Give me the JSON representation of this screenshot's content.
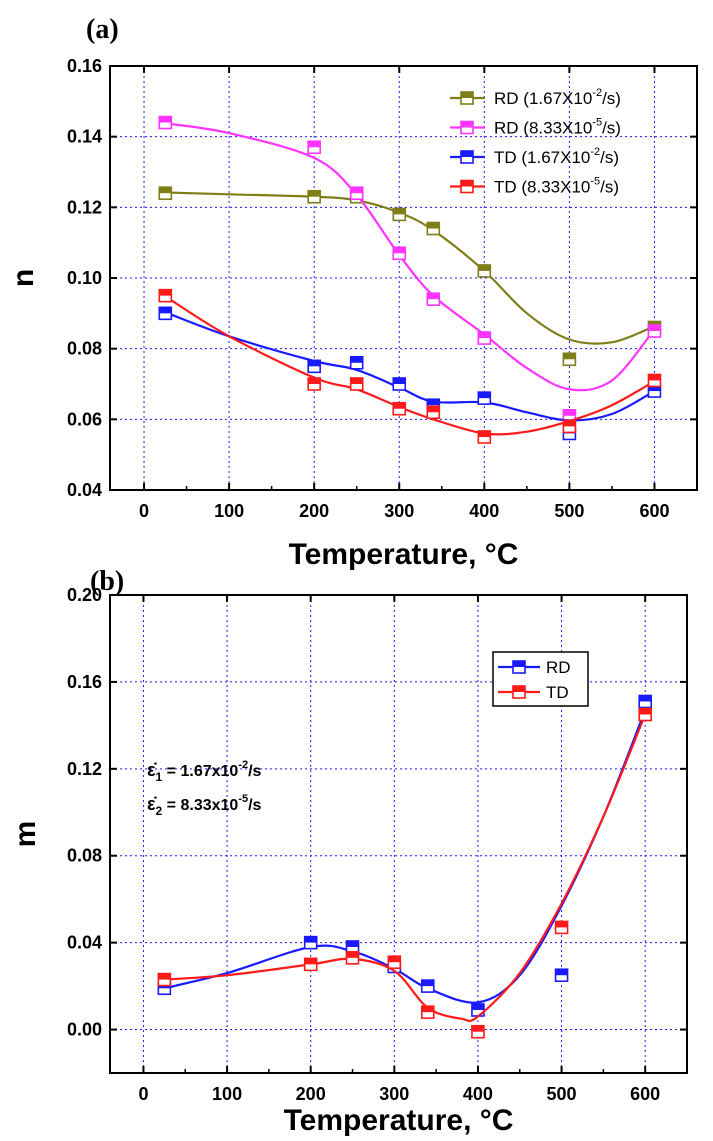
{
  "chart_data": [
    {
      "panel": "(a)",
      "type": "line",
      "xlabel": "Temperature, °C",
      "ylabel": "n",
      "xlim": [
        -40,
        650
      ],
      "ylim": [
        0.04,
        0.16
      ],
      "xticks": [
        0,
        100,
        200,
        300,
        400,
        500,
        600
      ],
      "yticks": [
        0.04,
        0.06,
        0.08,
        0.1,
        0.12,
        0.14,
        0.16
      ],
      "yticklabels": [
        "0.04",
        "0.06",
        "0.08",
        "0.10",
        "0.12",
        "0.14",
        "0.16"
      ],
      "grid": true,
      "legend_position": "top-right",
      "x": [
        25,
        200,
        250,
        300,
        340,
        400,
        500,
        600
      ],
      "series": [
        {
          "name": "RD (1.67X10-2/s)",
          "legend_base": "RD (1.67X10",
          "legend_exp": "-2",
          "legend_tail": "/s)",
          "color": "#7f7f1a",
          "values": [
            0.124,
            0.123,
            0.123,
            0.118,
            0.114,
            0.102,
            0.077,
            0.086
          ],
          "curve": [
            [
              25,
              0.1242
            ],
            [
              100,
              0.1237
            ],
            [
              200,
              0.123
            ],
            [
              250,
              0.122
            ],
            [
              300,
              0.1185
            ],
            [
              340,
              0.1135
            ],
            [
              400,
              0.102
            ],
            [
              450,
              0.09
            ],
            [
              500,
              0.0826
            ],
            [
              550,
              0.0818
            ],
            [
              600,
              0.0864
            ]
          ]
        },
        {
          "name": "RD (8.33X10-5/s)",
          "legend_base": "RD (8.33X10",
          "legend_exp": "-5",
          "legend_tail": "/s)",
          "color": "#ff33ff",
          "values": [
            0.144,
            0.137,
            0.124,
            0.107,
            0.094,
            0.083,
            0.061,
            0.085
          ],
          "curve": [
            [
              25,
              0.1438
            ],
            [
              100,
              0.141
            ],
            [
              200,
              0.134
            ],
            [
              250,
              0.1235
            ],
            [
              300,
              0.1065
            ],
            [
              340,
              0.095
            ],
            [
              400,
              0.084
            ],
            [
              450,
              0.0745
            ],
            [
              500,
              0.0685
            ],
            [
              550,
              0.071
            ],
            [
              600,
              0.0855
            ]
          ]
        },
        {
          "name": "TD (1.67X10-2/s)",
          "legend_base": "TD (1.67X10",
          "legend_exp": "-2",
          "legend_tail": "/s)",
          "color": "#1a1aff",
          "values": [
            0.09,
            0.075,
            0.076,
            0.07,
            0.064,
            0.066,
            0.056,
            0.068
          ],
          "curve": [
            [
              25,
              0.0903
            ],
            [
              100,
              0.0835
            ],
            [
              200,
              0.0765
            ],
            [
              250,
              0.074
            ],
            [
              300,
              0.069
            ],
            [
              340,
              0.065
            ],
            [
              400,
              0.0648
            ],
            [
              450,
              0.062
            ],
            [
              500,
              0.0597
            ],
            [
              550,
              0.0615
            ],
            [
              600,
              0.068
            ]
          ]
        },
        {
          "name": "TD (8.33X10-5/s)",
          "legend_base": "TD (8.33X10",
          "legend_exp": "-5",
          "legend_tail": "/s)",
          "color": "#ff1a1a",
          "values": [
            0.095,
            0.07,
            0.07,
            0.063,
            0.062,
            0.055,
            0.058,
            0.071
          ],
          "curve": [
            [
              25,
              0.0948
            ],
            [
              100,
              0.0835
            ],
            [
              200,
              0.0718
            ],
            [
              250,
              0.0685
            ],
            [
              300,
              0.0635
            ],
            [
              340,
              0.06
            ],
            [
              400,
              0.056
            ],
            [
              450,
              0.0565
            ],
            [
              500,
              0.0595
            ],
            [
              550,
              0.064
            ],
            [
              600,
              0.0708
            ]
          ]
        }
      ]
    },
    {
      "panel": "(b)",
      "type": "line",
      "xlabel": "Temperature, °C",
      "ylabel": "m",
      "xlim": [
        -40,
        650
      ],
      "ylim": [
        -0.02,
        0.2
      ],
      "xticks": [
        0,
        100,
        200,
        300,
        400,
        500,
        600
      ],
      "yticks": [
        0.0,
        0.04,
        0.08,
        0.12,
        0.16,
        0.2
      ],
      "yticklabels": [
        "0.00",
        "0.04",
        "0.08",
        "0.12",
        "0.16",
        "0.20"
      ],
      "grid": true,
      "legend_position": "top-right",
      "annotations": [
        {
          "symbol": "ε̇",
          "sub": "1",
          "eq": " = 1.67x10",
          "exp": "-2",
          "tail": "/s"
        },
        {
          "symbol": "ε̇",
          "sub": "2",
          "eq": " = 8.33x10",
          "exp": "-5",
          "tail": "/s"
        }
      ],
      "x": [
        25,
        200,
        250,
        300,
        340,
        400,
        500,
        600
      ],
      "series": [
        {
          "name": "RD",
          "color": "#1a1aff",
          "values": [
            0.019,
            0.04,
            0.038,
            0.029,
            0.02,
            0.009,
            0.025,
            0.151
          ],
          "curve": [
            [
              25,
              0.019
            ],
            [
              100,
              0.026
            ],
            [
              200,
              0.038
            ],
            [
              250,
              0.036
            ],
            [
              300,
              0.028
            ],
            [
              340,
              0.019
            ],
            [
              400,
              0.0125
            ],
            [
              450,
              0.025
            ],
            [
              500,
              0.057
            ],
            [
              550,
              0.098
            ],
            [
              600,
              0.147
            ]
          ]
        },
        {
          "name": "TD",
          "color": "#ff1a1a",
          "values": [
            0.023,
            0.03,
            0.033,
            0.031,
            0.008,
            -0.001,
            0.047,
            0.145
          ],
          "curve": [
            [
              25,
              0.023
            ],
            [
              100,
              0.025
            ],
            [
              200,
              0.03
            ],
            [
              250,
              0.0325
            ],
            [
              300,
              0.027
            ],
            [
              340,
              0.01
            ],
            [
              380,
              0.005
            ],
            [
              400,
              0.006
            ],
            [
              450,
              0.026
            ],
            [
              500,
              0.058
            ],
            [
              550,
              0.098
            ],
            [
              600,
              0.145
            ]
          ]
        }
      ]
    }
  ]
}
